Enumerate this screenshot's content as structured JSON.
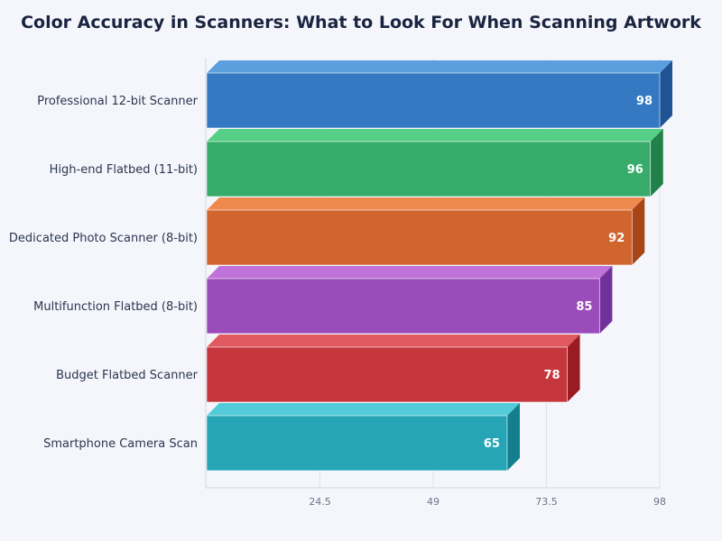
{
  "chart_data": {
    "type": "bar",
    "orientation": "horizontal",
    "style": "3d",
    "title": "Color Accuracy in Scanners: What to Look For When Scanning Artwork",
    "xlabel": "",
    "ylabel": "",
    "categories": [
      "Professional 12-bit Scanner",
      "High-end Flatbed (11-bit)",
      "Dedicated Photo Scanner (8-bit)",
      "Multifunction Flatbed (8-bit)",
      "Budget Flatbed Scanner",
      "Smartphone Camera Scan"
    ],
    "values": [
      98,
      96,
      92,
      85,
      78,
      65
    ],
    "xlim": [
      0,
      98
    ],
    "xticks": [
      "24.5",
      "49",
      "73.5",
      "98"
    ],
    "xtick_values": [
      24.5,
      49,
      73.5,
      98
    ],
    "grid": true,
    "legend": "none",
    "colors": [
      "#3479c1",
      "#37ac6a",
      "#d1652e",
      "#9a4cba",
      "#c5363d",
      "#26a5b6"
    ],
    "top_colors": [
      "#5b9fdf",
      "#56cf86",
      "#ef8a4f",
      "#bf72d8",
      "#e05a5f",
      "#52ccd8"
    ],
    "side_colors": [
      "#1f5394",
      "#228148",
      "#a84516",
      "#72309b",
      "#9a1c22",
      "#137e8e"
    ]
  }
}
